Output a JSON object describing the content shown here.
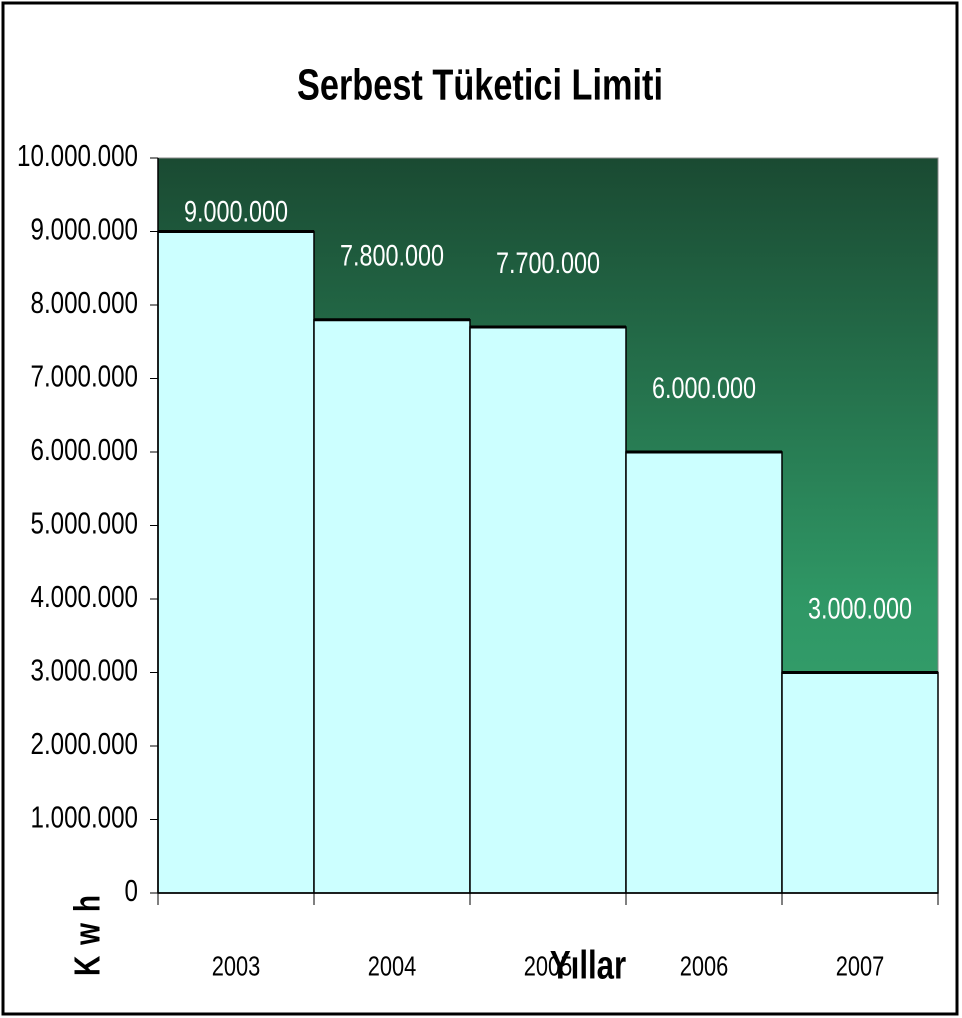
{
  "chart_data": {
    "type": "bar",
    "title": "Serbest Tüketici Limiti",
    "x_label": "Yıllar",
    "y_label": "Kwh",
    "categories": [
      "2003",
      "2004",
      "2005",
      "2006",
      "2007"
    ],
    "values": [
      9000000,
      7800000,
      7700000,
      6000000,
      3000000
    ],
    "value_labels": [
      "9.000.000",
      "7.800.000",
      "7.700.000",
      "6.000.000",
      "3.000.000"
    ],
    "color": "#ccffff",
    "ylim": [
      0,
      10000000
    ],
    "yticks": [
      0,
      {
        "value": 1000000,
        "label": "1.000.000"
      },
      {
        "value": 2000000,
        "label": "2.000.000"
      },
      {
        "value": 3000000,
        "label": "3.000.000"
      },
      {
        "value": 4000000,
        "label": "4.000.000"
      },
      {
        "value": 5000000,
        "label": "5.000.000"
      },
      {
        "value": 6000000,
        "label": "6.000.000"
      },
      {
        "value": 7000000,
        "label": "7.000.000"
      },
      {
        "value": 8000000,
        "label": "8.000.000"
      },
      {
        "value": 9000000,
        "label": "9.000.000"
      },
      {
        "value": 10000000,
        "label": "10.000.000"
      }
    ]
  }
}
